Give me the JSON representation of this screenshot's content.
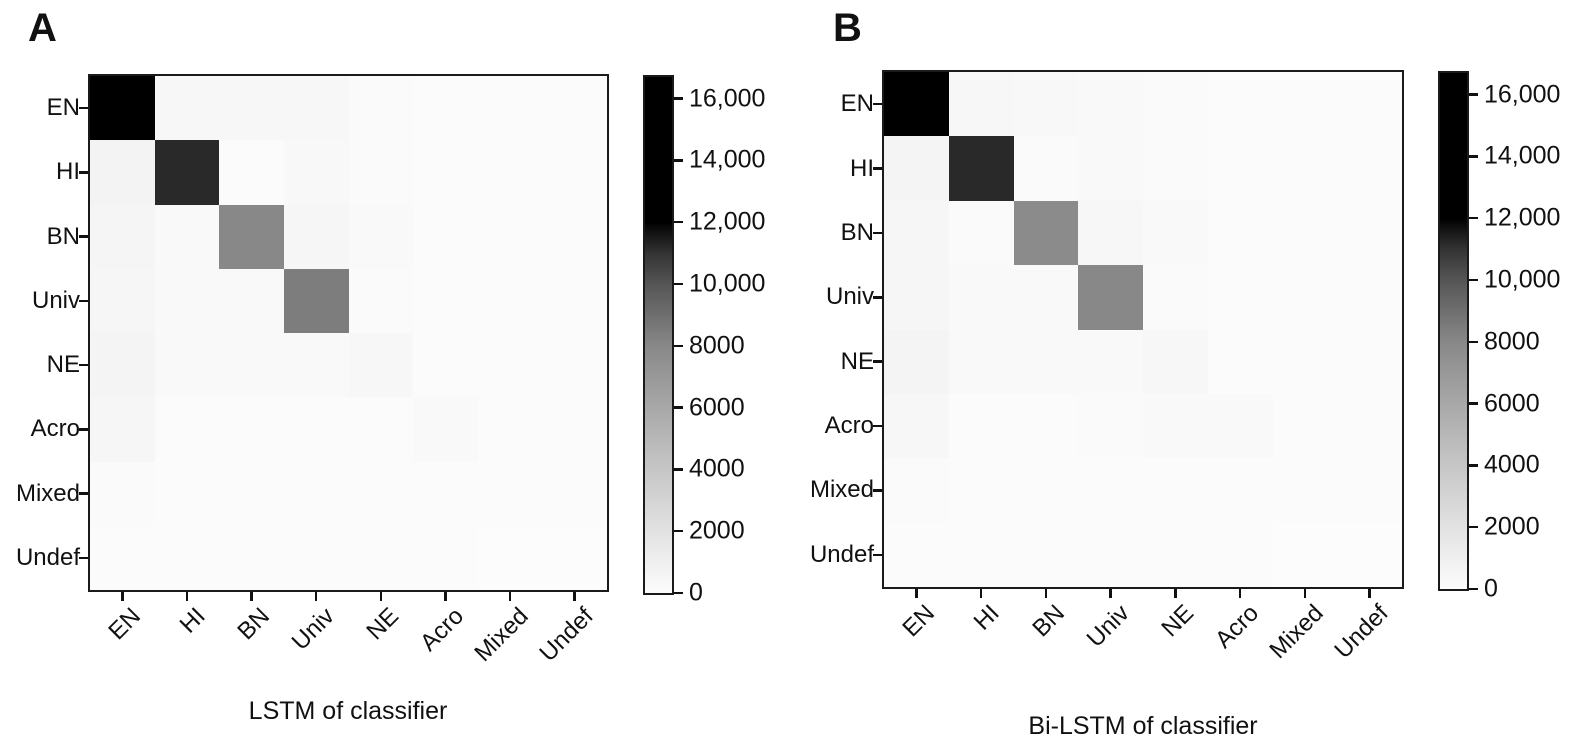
{
  "figure": {
    "background": "#ffffff",
    "text_color": "#111111",
    "frame_color": "#1a1a1a"
  },
  "colormap": {
    "name": "greys-saturated-above-12000",
    "description": "gray level (0-255) per value; black for values >= 12000",
    "stops": [
      [
        0,
        252
      ],
      [
        2000,
        226
      ],
      [
        4000,
        198
      ],
      [
        6000,
        168
      ],
      [
        8000,
        136
      ],
      [
        10000,
        85
      ],
      [
        11000,
        51
      ],
      [
        11500,
        26
      ],
      [
        12000,
        0
      ],
      [
        16700,
        0
      ]
    ]
  },
  "chart_data": [
    {
      "type": "heatmap",
      "panel_label": "A",
      "xlabel": "LSTM of classifier",
      "x_categories": [
        "EN",
        "HI",
        "BN",
        "Univ",
        "NE",
        "Acro",
        "Mixed",
        "Undef"
      ],
      "y_categories": [
        "EN",
        "HI",
        "BN",
        "Univ",
        "NE",
        "Acro",
        "Mixed",
        "Undef"
      ],
      "vmin": 0,
      "vmax": 16700,
      "legend_position": "right-colorbar",
      "grid": false,
      "matrix": [
        [
          16700,
          400,
          350,
          350,
          150,
          100,
          80,
          80
        ],
        [
          700,
          11200,
          100,
          300,
          120,
          80,
          60,
          60
        ],
        [
          550,
          200,
          8000,
          450,
          250,
          100,
          60,
          60
        ],
        [
          500,
          250,
          250,
          8450,
          120,
          80,
          60,
          60
        ],
        [
          650,
          200,
          200,
          200,
          350,
          80,
          60,
          60
        ],
        [
          450,
          100,
          100,
          100,
          100,
          200,
          60,
          60
        ],
        [
          150,
          60,
          60,
          60,
          60,
          60,
          40,
          40
        ],
        [
          80,
          40,
          40,
          40,
          40,
          40,
          20,
          20
        ]
      ],
      "colorbar_ticks": [
        {
          "value": 16000,
          "label": "16,000"
        },
        {
          "value": 14000,
          "label": "14,000"
        },
        {
          "value": 12000,
          "label": "12,000"
        },
        {
          "value": 10000,
          "label": "10,000"
        },
        {
          "value": 8000,
          "label": "8000"
        },
        {
          "value": 6000,
          "label": "6000"
        },
        {
          "value": 4000,
          "label": "4000"
        },
        {
          "value": 2000,
          "label": "2000"
        },
        {
          "value": 0,
          "label": "0"
        }
      ]
    },
    {
      "type": "heatmap",
      "panel_label": "B",
      "xlabel": "Bi-LSTM of classifier",
      "x_categories": [
        "EN",
        "HI",
        "BN",
        "Univ",
        "NE",
        "Acro",
        "Mixed",
        "Undef"
      ],
      "y_categories": [
        "EN",
        "HI",
        "BN",
        "Univ",
        "NE",
        "Acro",
        "Mixed",
        "Undef"
      ],
      "vmin": 0,
      "vmax": 16700,
      "legend_position": "right-colorbar",
      "grid": false,
      "matrix": [
        [
          16700,
          400,
          300,
          250,
          150,
          100,
          80,
          80
        ],
        [
          650,
          11200,
          150,
          250,
          120,
          80,
          60,
          60
        ],
        [
          500,
          150,
          7800,
          400,
          250,
          100,
          60,
          60
        ],
        [
          450,
          250,
          200,
          8000,
          150,
          80,
          60,
          60
        ],
        [
          600,
          200,
          200,
          200,
          400,
          100,
          60,
          60
        ],
        [
          400,
          100,
          100,
          150,
          200,
          200,
          80,
          60
        ],
        [
          150,
          60,
          60,
          60,
          60,
          60,
          40,
          40
        ],
        [
          80,
          40,
          40,
          40,
          40,
          40,
          20,
          20
        ]
      ],
      "colorbar_ticks": [
        {
          "value": 16000,
          "label": "16,000"
        },
        {
          "value": 14000,
          "label": "14,000"
        },
        {
          "value": 12000,
          "label": "12,000"
        },
        {
          "value": 10000,
          "label": "10,000"
        },
        {
          "value": 8000,
          "label": "8000"
        },
        {
          "value": 6000,
          "label": "6000"
        },
        {
          "value": 4000,
          "label": "4000"
        },
        {
          "value": 2000,
          "label": "2000"
        },
        {
          "value": 0,
          "label": "0"
        }
      ]
    }
  ]
}
